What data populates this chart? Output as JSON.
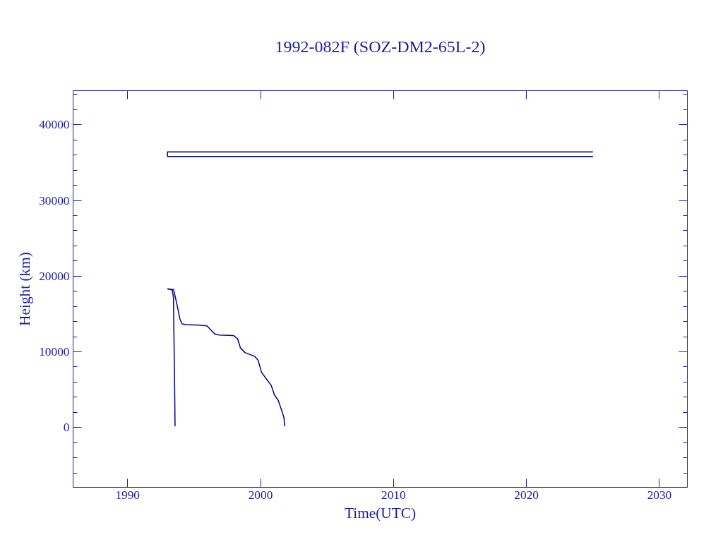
{
  "chart_data": {
    "type": "line",
    "title": "1992-082F (SOZ-DM2-65L-2)",
    "xlabel": "Time(UTC)",
    "ylabel": "Height (km)",
    "xlim": [
      1985.9,
      2032.1
    ],
    "ylim": [
      -7900,
      44500
    ],
    "xticks": [
      1990,
      2000,
      2010,
      2020,
      2030
    ],
    "yticks": [
      {
        "value": -6000,
        "label": null
      },
      {
        "value": -4000,
        "label": null
      },
      {
        "value": -2000,
        "label": null
      },
      0,
      {
        "value": 2000,
        "label": null
      },
      {
        "value": 4000,
        "label": null
      },
      {
        "value": 6000,
        "label": null
      },
      {
        "value": 8000,
        "label": null
      },
      10000,
      {
        "value": 12000,
        "label": null
      },
      {
        "value": 14000,
        "label": null
      },
      {
        "value": 16000,
        "label": null
      },
      {
        "value": 18000,
        "label": null
      },
      20000,
      {
        "value": 22000,
        "label": null
      },
      {
        "value": 24000,
        "label": null
      },
      {
        "value": 26000,
        "label": null
      },
      {
        "value": 28000,
        "label": null
      },
      30000,
      {
        "value": 32000,
        "label": null
      },
      {
        "value": 34000,
        "label": null
      },
      {
        "value": 36000,
        "label": null
      },
      {
        "value": 38000,
        "label": null
      },
      40000,
      {
        "value": 42000,
        "label": null
      },
      {
        "value": 44000,
        "label": null
      }
    ],
    "grid": false,
    "marker": "none",
    "line_style": "solid",
    "series": [
      {
        "color": "#00008b",
        "x": [
          2025.0,
          1993.0,
          1993.0,
          2025.0
        ],
        "values": [
          36400,
          36400,
          35810,
          35810
        ]
      },
      {
        "color": "#00008b",
        "x": [
          1993.0,
          1993.36,
          1993.45,
          1993.48,
          1993.54,
          1993.57
        ],
        "values": [
          18320,
          18150,
          17160,
          12870,
          5280,
          170
        ]
      },
      {
        "color": "#00008b",
        "x": [
          1993.0,
          1993.46,
          1993.64,
          1993.8,
          1993.93,
          1994.1,
          1994.42,
          1995.44,
          1995.97,
          1996.54,
          1996.9,
          1997.96,
          1998.28,
          1998.49,
          1998.84,
          1999.55,
          1999.81,
          2000.08,
          2000.43,
          2000.79,
          2001.05,
          2001.32,
          2001.58,
          2001.76,
          2001.81
        ],
        "values": [
          18320,
          18220,
          16830,
          15510,
          14360,
          13690,
          13590,
          13530,
          13430,
          12380,
          12210,
          12150,
          11710,
          10500,
          9900,
          9410,
          8910,
          7260,
          6440,
          5610,
          4290,
          3630,
          2310,
          1320,
          170
        ]
      }
    ]
  }
}
